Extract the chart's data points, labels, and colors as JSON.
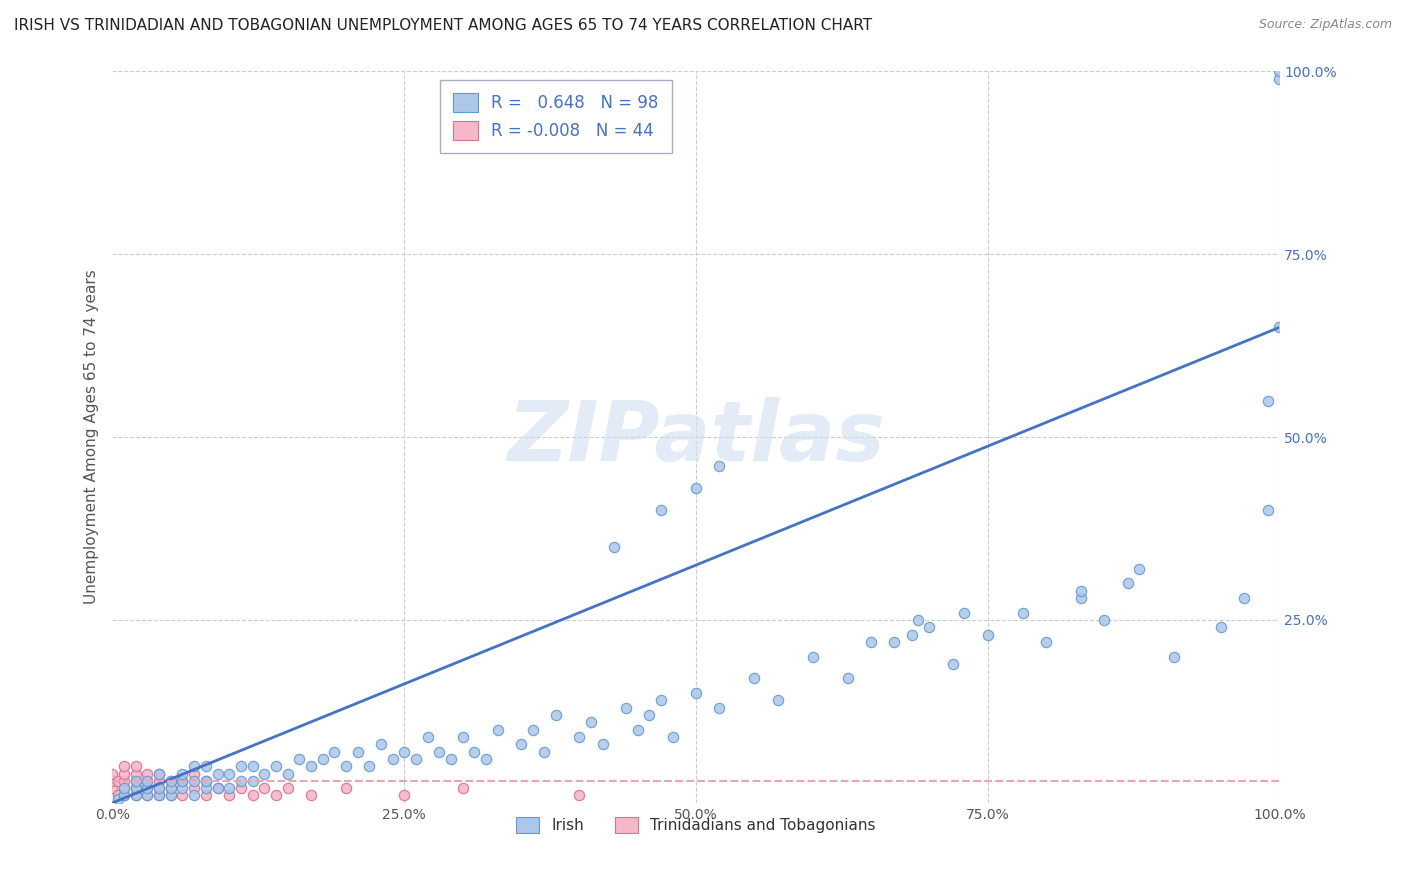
{
  "title": "IRISH VS TRINIDADIAN AND TOBAGONIAN UNEMPLOYMENT AMONG AGES 65 TO 74 YEARS CORRELATION CHART",
  "source": "Source: ZipAtlas.com",
  "ylabel": "Unemployment Among Ages 65 to 74 years",
  "xlim": [
    0,
    1.0
  ],
  "ylim": [
    0,
    1.0
  ],
  "xticks": [
    0.0,
    0.25,
    0.5,
    0.75,
    1.0
  ],
  "xticklabels": [
    "0.0%",
    "25.0%",
    "50.0%",
    "75.0%",
    "100.0%"
  ],
  "ytick_positions": [
    0.0,
    0.25,
    0.5,
    0.75,
    1.0
  ],
  "yticklabels": [
    "",
    "25.0%",
    "50.0%",
    "75.0%",
    "100.0%"
  ],
  "grid_color": "#cccccc",
  "background_color": "#ffffff",
  "irish_color": "#aec6e8",
  "irish_edge_color": "#5b9bd5",
  "trini_color": "#f4b8c8",
  "trini_edge_color": "#e07090",
  "irish_R": 0.648,
  "irish_N": 98,
  "trini_R": -0.008,
  "trini_N": 44,
  "irish_line_color": "#4472c4",
  "trini_line_color": "#f4a0b0",
  "watermark_text": "ZIPatlas",
  "legend_label_irish": "Irish",
  "legend_label_trini": "Trinidadians and Tobagonians",
  "title_fontsize": 11,
  "source_fontsize": 9,
  "axis_label_fontsize": 11,
  "tick_fontsize": 10,
  "irish_line_x0": 0.0,
  "irish_line_y0": 0.0,
  "irish_line_x1": 1.0,
  "irish_line_y1": 0.65,
  "trini_line_x0": 0.0,
  "trini_line_x1": 1.0,
  "trini_line_y": 0.03,
  "irish_pts_x": [
    0.005,
    0.01,
    0.01,
    0.02,
    0.02,
    0.02,
    0.03,
    0.03,
    0.03,
    0.04,
    0.04,
    0.04,
    0.05,
    0.05,
    0.05,
    0.06,
    0.06,
    0.06,
    0.07,
    0.07,
    0.07,
    0.08,
    0.08,
    0.08,
    0.09,
    0.09,
    0.1,
    0.1,
    0.11,
    0.11,
    0.12,
    0.12,
    0.13,
    0.14,
    0.15,
    0.16,
    0.17,
    0.18,
    0.19,
    0.2,
    0.21,
    0.22,
    0.23,
    0.24,
    0.25,
    0.26,
    0.27,
    0.28,
    0.29,
    0.3,
    0.31,
    0.32,
    0.33,
    0.35,
    0.36,
    0.37,
    0.38,
    0.4,
    0.41,
    0.42,
    0.44,
    0.45,
    0.46,
    0.47,
    0.48,
    0.5,
    0.52,
    0.55,
    0.57,
    0.6,
    0.63,
    0.65,
    0.7,
    0.72,
    0.75,
    0.78,
    0.8,
    0.83,
    0.85,
    0.87,
    0.43,
    0.47,
    0.5,
    0.52,
    0.67,
    0.73,
    0.83,
    0.88,
    0.91,
    0.95,
    0.97,
    0.99,
    0.99,
    1.0,
    1.0,
    1.0,
    0.685,
    0.69
  ],
  "irish_pts_y": [
    0.005,
    0.01,
    0.02,
    0.01,
    0.02,
    0.03,
    0.01,
    0.02,
    0.03,
    0.01,
    0.02,
    0.04,
    0.01,
    0.02,
    0.03,
    0.02,
    0.03,
    0.04,
    0.01,
    0.03,
    0.05,
    0.02,
    0.03,
    0.05,
    0.02,
    0.04,
    0.02,
    0.04,
    0.03,
    0.05,
    0.03,
    0.05,
    0.04,
    0.05,
    0.04,
    0.06,
    0.05,
    0.06,
    0.07,
    0.05,
    0.07,
    0.05,
    0.08,
    0.06,
    0.07,
    0.06,
    0.09,
    0.07,
    0.06,
    0.09,
    0.07,
    0.06,
    0.1,
    0.08,
    0.1,
    0.07,
    0.12,
    0.09,
    0.11,
    0.08,
    0.13,
    0.1,
    0.12,
    0.14,
    0.09,
    0.15,
    0.13,
    0.17,
    0.14,
    0.2,
    0.17,
    0.22,
    0.24,
    0.19,
    0.23,
    0.26,
    0.22,
    0.28,
    0.25,
    0.3,
    0.35,
    0.4,
    0.43,
    0.46,
    0.22,
    0.26,
    0.29,
    0.32,
    0.2,
    0.24,
    0.28,
    0.4,
    0.55,
    0.65,
    0.99,
    1.0,
    0.23,
    0.25
  ],
  "trini_pts_x": [
    0.0,
    0.0,
    0.0,
    0.005,
    0.005,
    0.01,
    0.01,
    0.01,
    0.01,
    0.01,
    0.02,
    0.02,
    0.02,
    0.02,
    0.02,
    0.03,
    0.03,
    0.03,
    0.03,
    0.04,
    0.04,
    0.04,
    0.04,
    0.05,
    0.05,
    0.05,
    0.06,
    0.06,
    0.07,
    0.07,
    0.08,
    0.08,
    0.09,
    0.1,
    0.11,
    0.12,
    0.13,
    0.14,
    0.15,
    0.17,
    0.2,
    0.25,
    0.3,
    0.4
  ],
  "trini_pts_y": [
    0.02,
    0.03,
    0.04,
    0.01,
    0.03,
    0.01,
    0.02,
    0.03,
    0.04,
    0.05,
    0.01,
    0.02,
    0.03,
    0.04,
    0.05,
    0.01,
    0.02,
    0.03,
    0.04,
    0.01,
    0.02,
    0.03,
    0.04,
    0.01,
    0.02,
    0.03,
    0.01,
    0.03,
    0.02,
    0.04,
    0.01,
    0.03,
    0.02,
    0.01,
    0.02,
    0.01,
    0.02,
    0.01,
    0.02,
    0.01,
    0.02,
    0.01,
    0.02,
    0.01
  ]
}
